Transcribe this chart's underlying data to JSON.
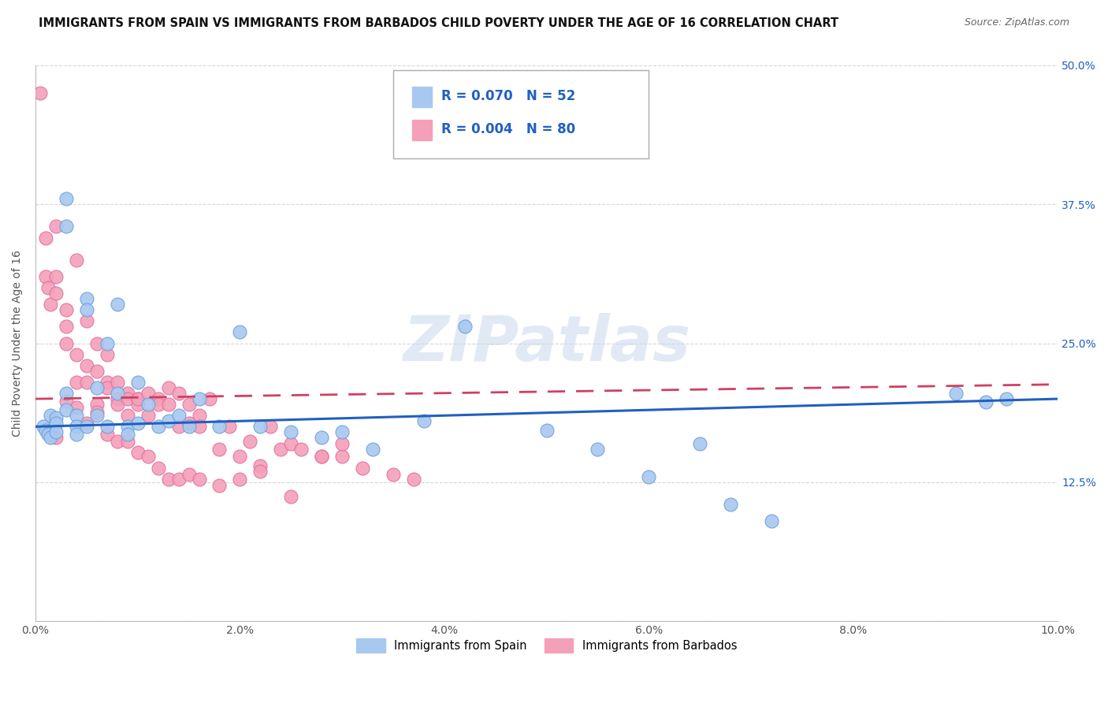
{
  "title": "IMMIGRANTS FROM SPAIN VS IMMIGRANTS FROM BARBADOS CHILD POVERTY UNDER THE AGE OF 16 CORRELATION CHART",
  "source": "Source: ZipAtlas.com",
  "ylabel": "Child Poverty Under the Age of 16",
  "xlim": [
    0,
    0.1
  ],
  "ylim": [
    0,
    0.5
  ],
  "xticks": [
    0.0,
    0.02,
    0.04,
    0.06,
    0.08,
    0.1
  ],
  "xtick_labels": [
    "0.0%",
    "2.0%",
    "4.0%",
    "6.0%",
    "8.0%",
    "10.0%"
  ],
  "yticks": [
    0.0,
    0.125,
    0.25,
    0.375,
    0.5
  ],
  "ytick_labels_right": [
    "",
    "12.5%",
    "25.0%",
    "37.5%",
    "50.0%"
  ],
  "background_color": "#ffffff",
  "grid_color": "#cccccc",
  "spain_color": "#a8c8f0",
  "barbados_color": "#f4a0b8",
  "spain_edge_color": "#6aa0d8",
  "barbados_edge_color": "#e070a0",
  "spain_line_color": "#2060c0",
  "barbados_line_color": "#d04060",
  "watermark": "ZIPatlas",
  "spain_x": [
    0.0008,
    0.001,
    0.0012,
    0.0015,
    0.0015,
    0.002,
    0.002,
    0.002,
    0.003,
    0.003,
    0.003,
    0.003,
    0.004,
    0.004,
    0.004,
    0.005,
    0.005,
    0.005,
    0.006,
    0.006,
    0.007,
    0.007,
    0.008,
    0.008,
    0.009,
    0.009,
    0.01,
    0.01,
    0.011,
    0.012,
    0.013,
    0.014,
    0.015,
    0.016,
    0.018,
    0.02,
    0.022,
    0.025,
    0.028,
    0.03,
    0.033,
    0.038,
    0.042,
    0.05,
    0.055,
    0.06,
    0.065,
    0.068,
    0.072,
    0.09,
    0.093,
    0.095
  ],
  "spain_y": [
    0.175,
    0.172,
    0.168,
    0.185,
    0.165,
    0.183,
    0.178,
    0.17,
    0.38,
    0.355,
    0.205,
    0.19,
    0.185,
    0.175,
    0.168,
    0.29,
    0.28,
    0.175,
    0.21,
    0.185,
    0.25,
    0.175,
    0.285,
    0.205,
    0.175,
    0.168,
    0.215,
    0.178,
    0.195,
    0.175,
    0.18,
    0.185,
    0.175,
    0.2,
    0.175,
    0.26,
    0.175,
    0.17,
    0.165,
    0.17,
    0.155,
    0.18,
    0.265,
    0.172,
    0.155,
    0.13,
    0.16,
    0.105,
    0.09,
    0.205,
    0.197,
    0.2
  ],
  "barbados_x": [
    0.0005,
    0.001,
    0.001,
    0.0012,
    0.0015,
    0.002,
    0.002,
    0.002,
    0.003,
    0.003,
    0.003,
    0.004,
    0.004,
    0.004,
    0.005,
    0.005,
    0.005,
    0.006,
    0.006,
    0.006,
    0.007,
    0.007,
    0.007,
    0.008,
    0.008,
    0.008,
    0.009,
    0.009,
    0.009,
    0.01,
    0.01,
    0.01,
    0.011,
    0.011,
    0.012,
    0.012,
    0.013,
    0.013,
    0.014,
    0.014,
    0.015,
    0.015,
    0.016,
    0.016,
    0.017,
    0.018,
    0.019,
    0.02,
    0.021,
    0.022,
    0.023,
    0.024,
    0.025,
    0.026,
    0.028,
    0.03,
    0.032,
    0.035,
    0.037,
    0.002,
    0.003,
    0.004,
    0.005,
    0.006,
    0.007,
    0.008,
    0.009,
    0.01,
    0.011,
    0.012,
    0.013,
    0.014,
    0.015,
    0.016,
    0.018,
    0.02,
    0.022,
    0.025,
    0.028,
    0.03
  ],
  "barbados_y": [
    0.475,
    0.345,
    0.31,
    0.3,
    0.285,
    0.295,
    0.31,
    0.355,
    0.265,
    0.25,
    0.28,
    0.24,
    0.215,
    0.325,
    0.23,
    0.215,
    0.27,
    0.225,
    0.25,
    0.195,
    0.24,
    0.215,
    0.21,
    0.2,
    0.215,
    0.195,
    0.205,
    0.185,
    0.2,
    0.2,
    0.195,
    0.2,
    0.185,
    0.205,
    0.2,
    0.195,
    0.21,
    0.195,
    0.205,
    0.175,
    0.195,
    0.178,
    0.185,
    0.175,
    0.2,
    0.155,
    0.175,
    0.148,
    0.162,
    0.14,
    0.175,
    0.155,
    0.16,
    0.155,
    0.148,
    0.148,
    0.138,
    0.132,
    0.128,
    0.165,
    0.198,
    0.192,
    0.178,
    0.188,
    0.168,
    0.162,
    0.162,
    0.152,
    0.148,
    0.138,
    0.128,
    0.128,
    0.132,
    0.128,
    0.122,
    0.128,
    0.135,
    0.112,
    0.148,
    0.16
  ],
  "spain_trend_x0": 0.0,
  "spain_trend_x1": 0.1,
  "spain_trend_y0": 0.175,
  "spain_trend_y1": 0.2,
  "barbados_trend_x0": 0.0,
  "barbados_trend_x1": 0.1,
  "barbados_trend_y0": 0.2,
  "barbados_trend_y1": 0.213
}
